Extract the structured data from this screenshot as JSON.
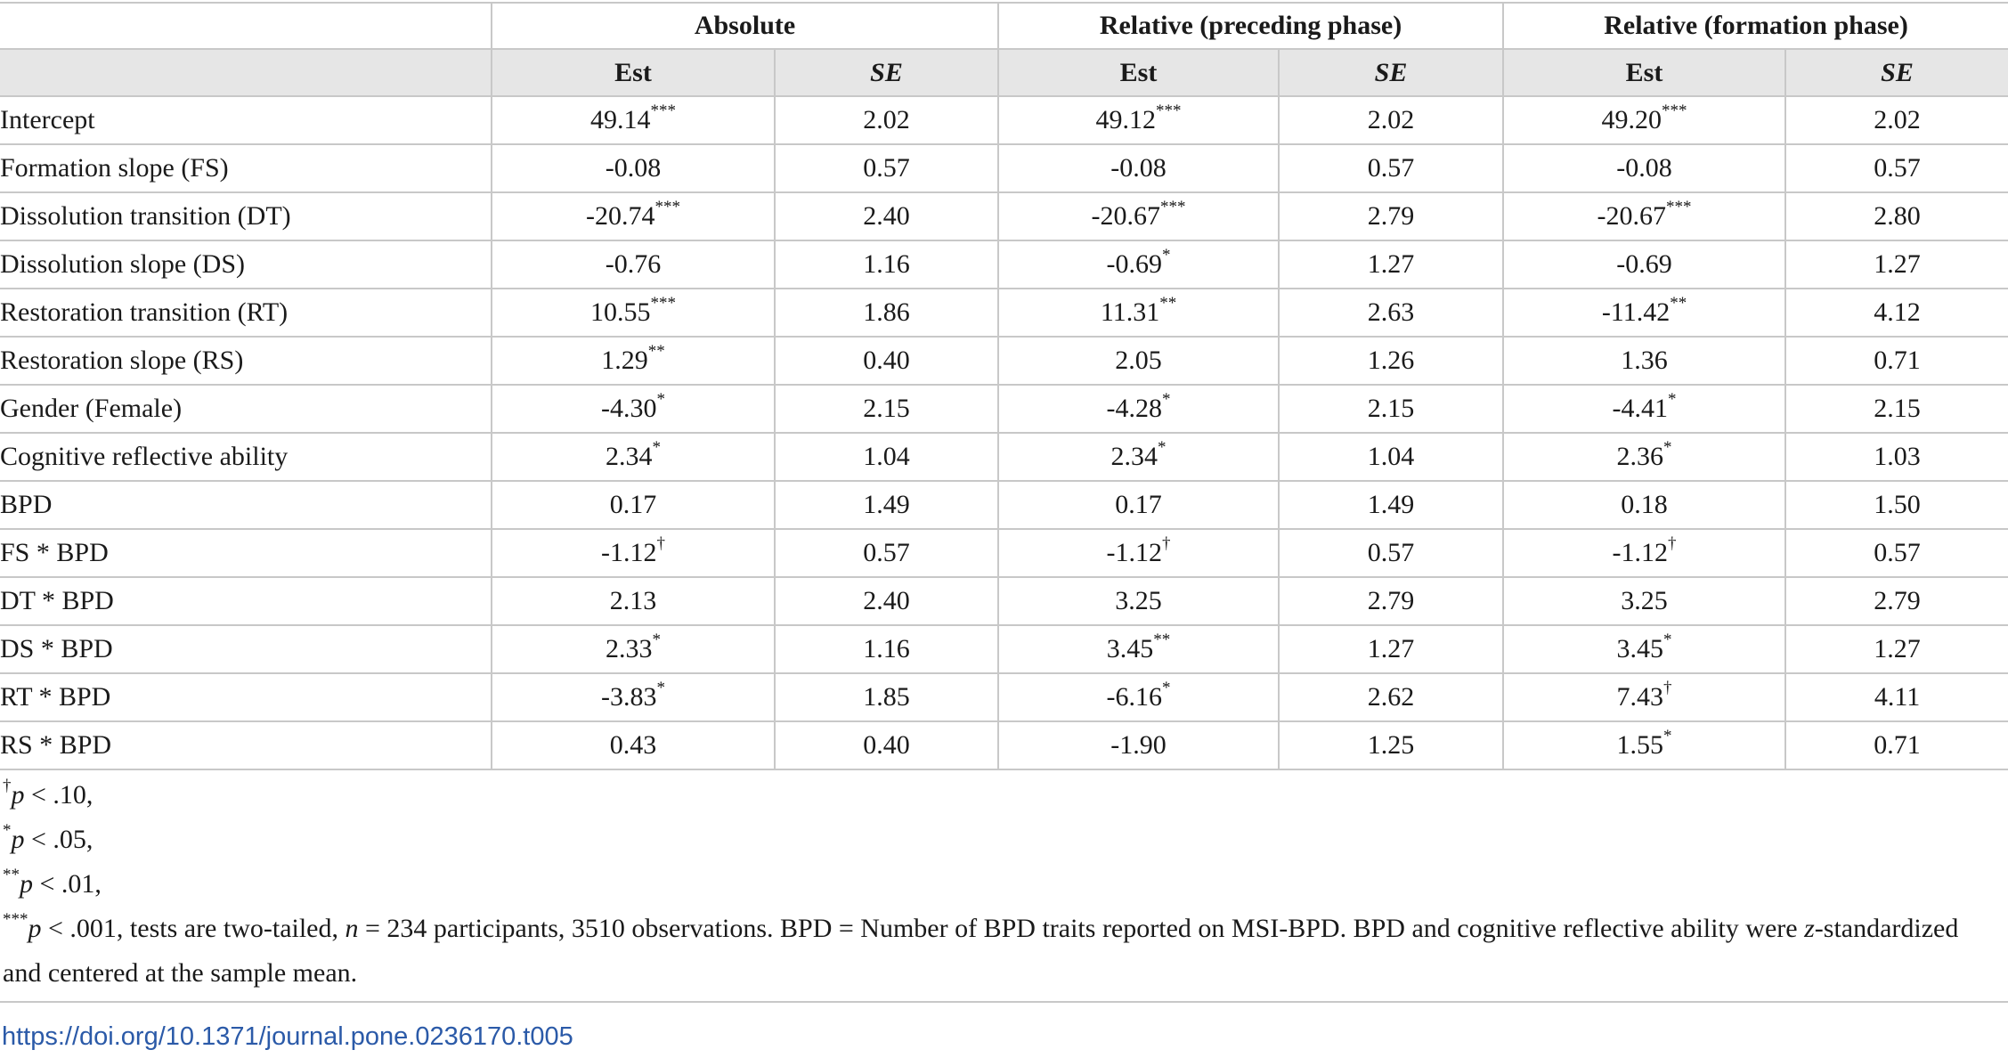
{
  "table": {
    "groups": [
      "Absolute",
      "Relative (preceding phase)",
      "Relative (formation phase)"
    ],
    "subheaders": [
      "Est",
      "SE",
      "Est",
      "SE",
      "Est",
      "SE"
    ],
    "rows": [
      {
        "label": "Intercept",
        "cells": [
          [
            "49.14",
            "***"
          ],
          [
            "2.02",
            ""
          ],
          [
            "49.12",
            "***"
          ],
          [
            "2.02",
            ""
          ],
          [
            "49.20",
            "***"
          ],
          [
            "2.02",
            ""
          ]
        ]
      },
      {
        "label": "Formation slope (FS)",
        "cells": [
          [
            "-0.08",
            ""
          ],
          [
            "0.57",
            ""
          ],
          [
            "-0.08",
            ""
          ],
          [
            "0.57",
            ""
          ],
          [
            "-0.08",
            ""
          ],
          [
            "0.57",
            ""
          ]
        ]
      },
      {
        "label": "Dissolution transition (DT)",
        "cells": [
          [
            "-20.74",
            "***"
          ],
          [
            "2.40",
            ""
          ],
          [
            "-20.67",
            "***"
          ],
          [
            "2.79",
            ""
          ],
          [
            "-20.67",
            "***"
          ],
          [
            "2.80",
            ""
          ]
        ]
      },
      {
        "label": "Dissolution slope (DS)",
        "cells": [
          [
            "-0.76",
            ""
          ],
          [
            "1.16",
            ""
          ],
          [
            "-0.69",
            "*"
          ],
          [
            "1.27",
            ""
          ],
          [
            "-0.69",
            ""
          ],
          [
            "1.27",
            ""
          ]
        ]
      },
      {
        "label": "Restoration transition (RT)",
        "cells": [
          [
            "10.55",
            "***"
          ],
          [
            "1.86",
            ""
          ],
          [
            "11.31",
            "**"
          ],
          [
            "2.63",
            ""
          ],
          [
            "-11.42",
            "**"
          ],
          [
            "4.12",
            ""
          ]
        ]
      },
      {
        "label": "Restoration slope (RS)",
        "cells": [
          [
            "1.29",
            "**"
          ],
          [
            "0.40",
            ""
          ],
          [
            "2.05",
            ""
          ],
          [
            "1.26",
            ""
          ],
          [
            "1.36",
            ""
          ],
          [
            "0.71",
            ""
          ]
        ]
      },
      {
        "label": "Gender (Female)",
        "cells": [
          [
            "-4.30",
            "*"
          ],
          [
            "2.15",
            ""
          ],
          [
            "-4.28",
            "*"
          ],
          [
            "2.15",
            ""
          ],
          [
            "-4.41",
            "*"
          ],
          [
            "2.15",
            ""
          ]
        ]
      },
      {
        "label": "Cognitive reflective ability",
        "cells": [
          [
            "2.34",
            "*"
          ],
          [
            "1.04",
            ""
          ],
          [
            "2.34",
            "*"
          ],
          [
            "1.04",
            ""
          ],
          [
            "2.36",
            "*"
          ],
          [
            "1.03",
            ""
          ]
        ]
      },
      {
        "label": "BPD",
        "cells": [
          [
            "0.17",
            ""
          ],
          [
            "1.49",
            ""
          ],
          [
            "0.17",
            ""
          ],
          [
            "1.49",
            ""
          ],
          [
            "0.18",
            ""
          ],
          [
            "1.50",
            ""
          ]
        ]
      },
      {
        "label": "FS * BPD",
        "cells": [
          [
            "-1.12",
            "†"
          ],
          [
            "0.57",
            ""
          ],
          [
            "-1.12",
            "†"
          ],
          [
            "0.57",
            ""
          ],
          [
            "-1.12",
            "†"
          ],
          [
            "0.57",
            ""
          ]
        ]
      },
      {
        "label": "DT * BPD",
        "cells": [
          [
            "2.13",
            ""
          ],
          [
            "2.40",
            ""
          ],
          [
            "3.25",
            ""
          ],
          [
            "2.79",
            ""
          ],
          [
            "3.25",
            ""
          ],
          [
            "2.79",
            ""
          ]
        ]
      },
      {
        "label": "DS * BPD",
        "cells": [
          [
            "2.33",
            "*"
          ],
          [
            "1.16",
            ""
          ],
          [
            "3.45",
            "**"
          ],
          [
            "1.27",
            ""
          ],
          [
            "3.45",
            "*"
          ],
          [
            "1.27",
            ""
          ]
        ]
      },
      {
        "label": "RT * BPD",
        "cells": [
          [
            "-3.83",
            "*"
          ],
          [
            "1.85",
            ""
          ],
          [
            "-6.16",
            "*"
          ],
          [
            "2.62",
            ""
          ],
          [
            "7.43",
            "†"
          ],
          [
            "4.11",
            ""
          ]
        ]
      },
      {
        "label": "RS * BPD",
        "cells": [
          [
            "0.43",
            ""
          ],
          [
            "0.40",
            ""
          ],
          [
            "-1.90",
            ""
          ],
          [
            "1.25",
            ""
          ],
          [
            "1.55",
            "*"
          ],
          [
            "0.71",
            ""
          ]
        ]
      }
    ]
  },
  "footnotes": {
    "n1": {
      "mark": "†",
      "p": "p",
      "rest": " < .10,"
    },
    "n2": {
      "mark": "*",
      "p": "p",
      "rest": " < .05,"
    },
    "n3": {
      "mark": "**",
      "p": "p",
      "rest": " < .01,"
    },
    "n4": {
      "mark": "***",
      "p": "p",
      "rest_a": " < .001, tests are two-tailed, ",
      "n": "n",
      "rest_b": " = 234 participants, 3510 observations. BPD = Number of BPD traits reported on MSI-BPD. BPD and cognitive reflective ability were ",
      "z": "z",
      "rest_c": "-standardized and centered at the sample mean."
    }
  },
  "doi": "https://doi.org/10.1371/journal.pone.0236170.t005"
}
